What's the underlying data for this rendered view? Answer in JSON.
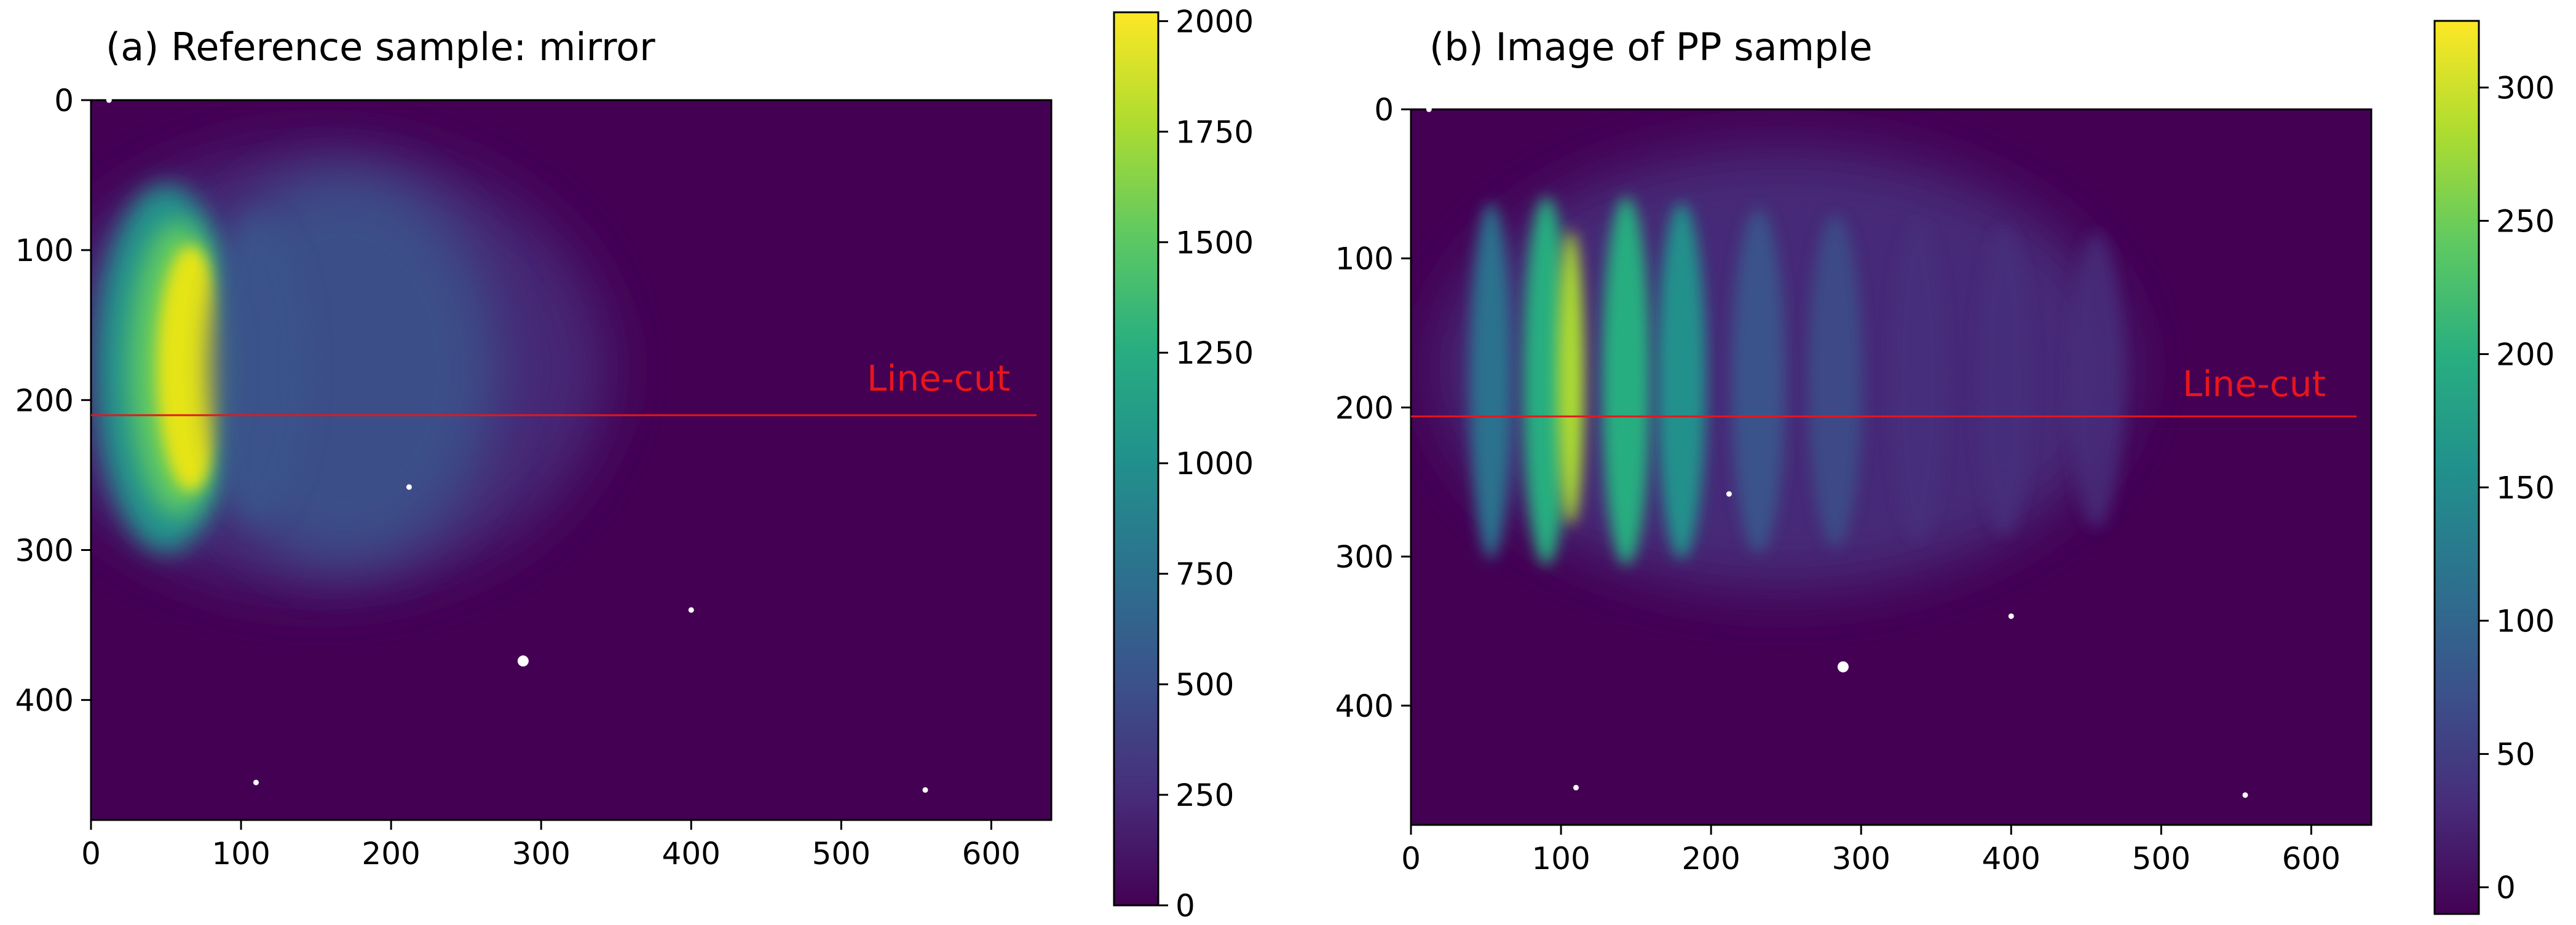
{
  "chart_data": [
    {
      "type": "heatmap",
      "title": "(a) Reference sample: mirror",
      "x_ticks": [
        0,
        100,
        200,
        300,
        400,
        500,
        600
      ],
      "y_ticks": [
        0,
        100,
        200,
        300,
        400
      ],
      "xlim": [
        0,
        640
      ],
      "ylim": [
        480,
        0
      ],
      "colorbar": {
        "min": 0,
        "max": 2020,
        "ticks": [
          0,
          250,
          500,
          750,
          1000,
          1250,
          1500,
          1750,
          2000
        ]
      },
      "annotation": {
        "text": "Line-cut",
        "line_y": 210,
        "line_x": [
          0,
          630
        ],
        "color": "#e8151b"
      },
      "dots": [
        [
          12,
          0
        ],
        [
          212,
          258
        ],
        [
          400,
          340
        ],
        [
          288,
          374
        ],
        [
          110,
          455
        ],
        [
          556,
          460
        ]
      ]
    },
    {
      "type": "heatmap",
      "title": "(b) Image of PP sample",
      "x_ticks": [
        0,
        100,
        200,
        300,
        400,
        500,
        600
      ],
      "y_ticks": [
        0,
        100,
        200,
        300,
        400
      ],
      "xlim": [
        0,
        640
      ],
      "ylim": [
        480,
        0
      ],
      "colorbar": {
        "min": -10,
        "max": 325,
        "ticks": [
          0,
          50,
          100,
          150,
          200,
          250,
          300
        ]
      },
      "annotation": {
        "text": "Line-cut",
        "line_y": 205,
        "line_x": [
          0,
          630
        ],
        "color": "#e8151b"
      },
      "dots": [
        [
          12,
          0
        ],
        [
          212,
          258
        ],
        [
          400,
          340
        ],
        [
          288,
          374
        ],
        [
          110,
          455
        ],
        [
          556,
          460
        ]
      ]
    }
  ]
}
